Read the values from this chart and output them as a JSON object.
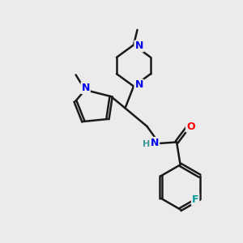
{
  "background_color": "#ebebeb",
  "atom_colors": {
    "N": "#0000ee",
    "O": "#ff0000",
    "F": "#009999",
    "C": "#000000",
    "H": "#3a9a9a"
  },
  "bond_color": "#1a1a1a",
  "bond_width": 1.8,
  "bg": "#ebebeb"
}
